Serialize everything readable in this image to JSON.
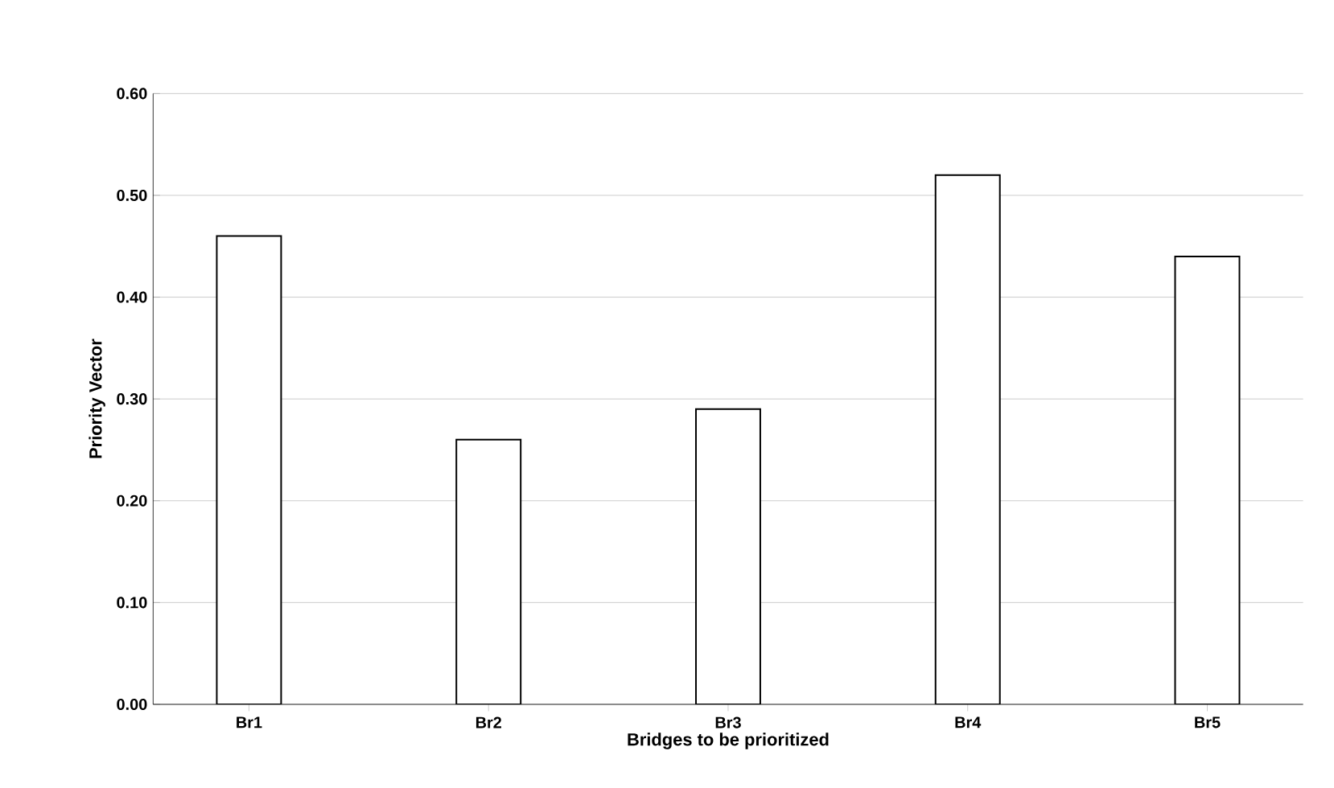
{
  "chart_data": {
    "type": "bar",
    "xlabel": "Bridges to be prioritized",
    "ylabel": "Priority Vector",
    "categories": [
      "Br1",
      "Br2",
      "Br3",
      "Br4",
      "Br5"
    ],
    "values": [
      0.46,
      0.26,
      0.29,
      0.52,
      0.44
    ],
    "color": "#ffffff",
    "ylim": [
      0,
      0.6
    ],
    "yticks": [
      {
        "value": 0,
        "label": "0.00"
      },
      {
        "value": 0.1,
        "label": "0.10"
      },
      {
        "value": 0.2,
        "label": "0.20"
      },
      {
        "value": 0.3,
        "label": "0.30"
      },
      {
        "value": 0.4,
        "label": "0.40"
      },
      {
        "value": 0.5,
        "label": "0.50"
      },
      {
        "value": 0.6,
        "label": "0.60"
      }
    ],
    "grid": "y"
  }
}
